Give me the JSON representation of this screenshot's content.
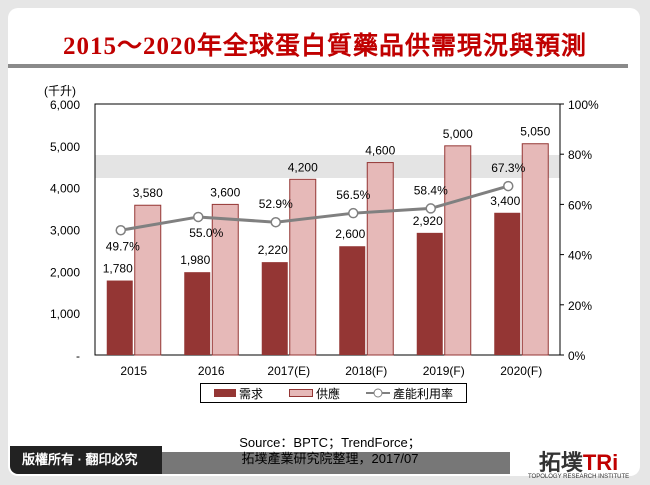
{
  "title": "2015～2020年全球蛋白質藥品供需現況與預測",
  "chart_data": {
    "type": "bar",
    "categories": [
      "2015",
      "2016",
      "2017(E)",
      "2018(F)",
      "2019(F)",
      "2020(F)"
    ],
    "series": [
      {
        "name": "需求",
        "type": "bar",
        "axis": "left",
        "color": "#943634",
        "values": [
          1780,
          1980,
          2220,
          2600,
          2920,
          3400
        ],
        "labels": [
          "1,780",
          "1,980",
          "2,220",
          "2,600",
          "2,920",
          "3,400"
        ]
      },
      {
        "name": "供應",
        "type": "bar",
        "axis": "left",
        "color": "#e6b9b8",
        "values": [
          3580,
          3600,
          4200,
          4600,
          5000,
          5050
        ],
        "labels": [
          "3,580",
          "3,600",
          "4,200",
          "4,600",
          "5,000",
          "5,050"
        ]
      },
      {
        "name": "產能利用率",
        "type": "line",
        "axis": "right",
        "color": "#808080",
        "values": [
          49.7,
          55.0,
          52.9,
          56.5,
          58.4,
          67.3
        ],
        "labels": [
          "49.7%",
          "55.0%",
          "52.9%",
          "56.5%",
          "58.4%",
          "67.3%"
        ]
      }
    ],
    "ylabel": "(千升)",
    "ylim": [
      0,
      6000
    ],
    "yticks": [
      "-",
      "1,000",
      "2,000",
      "3,000",
      "4,000",
      "5,000",
      "6,000"
    ],
    "y2lim": [
      0,
      100
    ],
    "y2ticks": [
      "0%",
      "20%",
      "40%",
      "60%",
      "80%",
      "100%"
    ],
    "legend": "bottom",
    "grid": false
  },
  "footer": {
    "copyright": "版權所有 · 翻印必究",
    "source_line1": "Source：BPTC；TrendForce；",
    "source_line2": "拓墣產業研究院整理，2017/07",
    "logo_cn": "拓墣",
    "logo_en": "TRi",
    "logo_sub": "TOPOLOGY RESEARCH INSTITUTE"
  }
}
